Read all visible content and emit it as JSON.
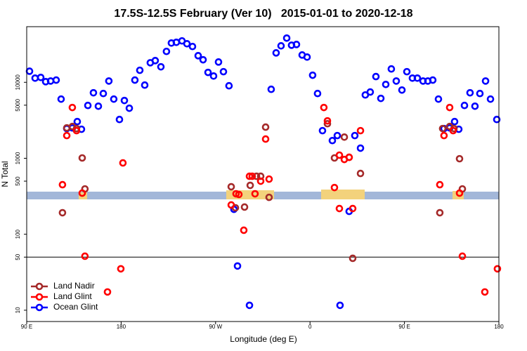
{
  "chart_data": {
    "type": "scatter",
    "title": "17.5S-12.5S February (Ver 10)   2015-01-01 to 2020-12-18",
    "x_label": "Longitude (deg E)",
    "y_label": "N Total",
    "xlim": [
      90,
      540
    ],
    "xticks": [
      {
        "value": 90,
        "label": "90 E"
      },
      180,
      {
        "value": 270,
        "label": "90 W"
      },
      {
        "value": 360,
        "label": "0"
      },
      {
        "value": 450,
        "label": "90 E"
      },
      {
        "value": 540,
        "label": "180"
      }
    ],
    "ylim": [
      7.1,
      54000
    ],
    "log_y": true,
    "yticks": [
      10,
      50,
      100,
      500,
      1000,
      5000,
      10000
    ],
    "hline": 50,
    "legend": "lower left",
    "series": [
      {
        "name": "Ocean Glint",
        "color": "#0000ff",
        "x": [
          92.7,
          98.0,
          103.4,
          108.1,
          112.8,
          118.1,
          122.8,
          128.2,
          133.5,
          138.2,
          142.2,
          148.3,
          153.6,
          158.3,
          163.0,
          168.3,
          173.0,
          178.4,
          183.1,
          187.8,
          193.1,
          197.8,
          202.5,
          207.8,
          212.5,
          217.9,
          223.2,
          227.9,
          232.6,
          238.0,
          242.7,
          248.0,
          253.4,
          258.1,
          262.8,
          268.1,
          272.8,
          277.5,
          282.8,
          287.5,
          290.9,
          302.3,
          323.0,
          327.7,
          332.4,
          337.8,
          342.4,
          347.1,
          352.5,
          357.2,
          362.5,
          367.2,
          371.9,
          381.3,
          386.0,
          388.6,
          397.3,
          402.7,
          408.1,
          412.7,
          417.4,
          422.8,
          427.5,
          432.2,
          437.5,
          442.2,
          447.6,
          452.3,
          457.6,
          462.3,
          467.7,
          472.3,
          477.0,
          482.4,
          487.7,
          493.1,
          497.8,
          501.8,
          507.2,
          512.5,
          517.2,
          521.9,
          527.3,
          532.0,
          538.0
        ],
        "values": [
          14000,
          11350,
          11600,
          10200,
          10400,
          10700,
          6010,
          2460,
          2510,
          3040,
          2410,
          4960,
          7280,
          4850,
          7120,
          10400,
          6010,
          3240,
          5760,
          4560,
          10700,
          14400,
          9190,
          18100,
          19300,
          16000,
          25500,
          32900,
          33600,
          35100,
          32200,
          29600,
          22400,
          19800,
          13500,
          12100,
          18500,
          13800,
          9000,
          213,
          38.2,
          11.6,
          8090,
          24400,
          30200,
          38200,
          30800,
          31500,
          22900,
          21500,
          12400,
          7120,
          2310,
          1710,
          1990,
          11.6,
          200,
          1990,
          1360,
          6820,
          7450,
          11900,
          6140,
          9380,
          15000,
          10400,
          7910,
          13800,
          11350,
          11350,
          10400,
          10400,
          10700,
          6010,
          2460,
          2510,
          3040,
          2410,
          4960,
          7280,
          4850,
          7120,
          10400,
          6010,
          3240
        ]
      },
      {
        "name": "Land Nadir",
        "color": "#a52a2a",
        "x": [
          124.1,
          128.2,
          133.5,
          137.5,
          142.9,
          145.5,
          284.9,
          288.9,
          297.6,
          303.0,
          309.0,
          313.0,
          317.7,
          321.0,
          376.6,
          383.3,
          392.7,
          397.3,
          400.7,
          408.1,
          483.7,
          486.4,
          493.1,
          497.2,
          502.5,
          505.2
        ],
        "values": [
          192,
          2510,
          2620,
          2460,
          1010,
          395,
          422,
          223,
          228,
          440,
          580,
          580,
          2570,
          306,
          2850,
          1010,
          1900,
          1030,
          48.2,
          631,
          192,
          2460,
          2620,
          2460,
          986,
          395
        ]
      },
      {
        "name": "Land Glint",
        "color": "#ff0000",
        "x": [
          124.1,
          128.2,
          133.5,
          137.5,
          142.9,
          145.5,
          167.0,
          179.7,
          181.7,
          284.9,
          289.5,
          292.2,
          296.9,
          302.3,
          304.9,
          307.6,
          313.0,
          317.7,
          321.0,
          373.2,
          376.6,
          383.3,
          388.0,
          388.0,
          392.7,
          397.3,
          400.7,
          408.1,
          483.7,
          487.7,
          493.1,
          496.4,
          502.5,
          505.2,
          526.6,
          538.6
        ],
        "values": [
          449,
          1990,
          4660,
          2310,
          348,
          51.4,
          17.4,
          35.1,
          869,
          243,
          341,
          334,
          113,
          580,
          580,
          341,
          500,
          1790,
          532,
          4660,
          3110,
          412,
          1100,
          218,
          965,
          1030,
          218,
          2310,
          449,
          1990,
          4660,
          2310,
          348,
          51.4,
          17.4,
          35.1
        ]
      }
    ]
  }
}
